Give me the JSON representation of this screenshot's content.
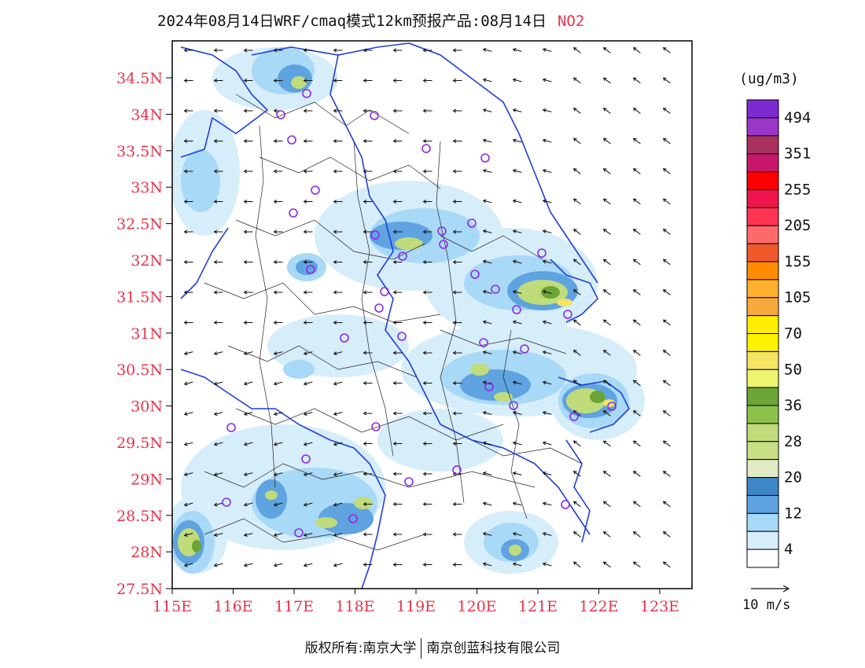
{
  "title": {
    "main": "2024年08月14日WRF/cmaq模式12km预报产品:08月14日",
    "species": "NO2"
  },
  "colors": {
    "axis_label": "#e8334a",
    "province_border": "#1f3fd6",
    "county_border": "#222222",
    "station_marker": "#8a2be2"
  },
  "axes": {
    "lat_ticks": [
      "34.5N",
      "34N",
      "33.5N",
      "33N",
      "32.5N",
      "32N",
      "31.5N",
      "31N",
      "30.5N",
      "30N",
      "29.5N",
      "29N",
      "28.5N",
      "28N",
      "27.5N"
    ],
    "lon_ticks": [
      "115E",
      "116E",
      "117E",
      "118E",
      "119E",
      "120E",
      "121E",
      "122E",
      "123E"
    ]
  },
  "legend": {
    "units": "(ug/m3)",
    "levels": [
      {
        "label": "494",
        "color": "#7d2bd1"
      },
      {
        "label": "",
        "color": "#9a36c8"
      },
      {
        "label": "351",
        "color": "#a8305e"
      },
      {
        "label": "",
        "color": "#c8176a"
      },
      {
        "label": "255",
        "color": "#ff0000"
      },
      {
        "label": "",
        "color": "#f0164d"
      },
      {
        "label": "205",
        "color": "#ff3352"
      },
      {
        "label": "",
        "color": "#ff6a6a"
      },
      {
        "label": "155",
        "color": "#f0592a"
      },
      {
        "label": "",
        "color": "#ff8c00"
      },
      {
        "label": "105",
        "color": "#ffb02e"
      },
      {
        "label": "",
        "color": "#f7a93b"
      },
      {
        "label": "70",
        "color": "#ffee00"
      },
      {
        "label": "",
        "color": "#fff200"
      },
      {
        "label": "50",
        "color": "#f5e563"
      },
      {
        "label": "",
        "color": "#eef56e"
      },
      {
        "label": "36",
        "color": "#6aa536"
      },
      {
        "label": "",
        "color": "#8cc24a"
      },
      {
        "label": "28",
        "color": "#c0dc7a"
      },
      {
        "label": "",
        "color": "#c8df86"
      },
      {
        "label": "20",
        "color": "#e1ebc3"
      },
      {
        "label": "",
        "color": "#3d87c7"
      },
      {
        "label": "12",
        "color": "#5fa3e0"
      },
      {
        "label": "",
        "color": "#a8d9f7"
      },
      {
        "label": "4",
        "color": "#d6edfa"
      },
      {
        "label": "",
        "color": "#ffffff"
      }
    ]
  },
  "wind_reference": "10 m/s",
  "footer": {
    "left": "版权所有:南京大学",
    "right": "南京创蓝科技有限公司"
  }
}
